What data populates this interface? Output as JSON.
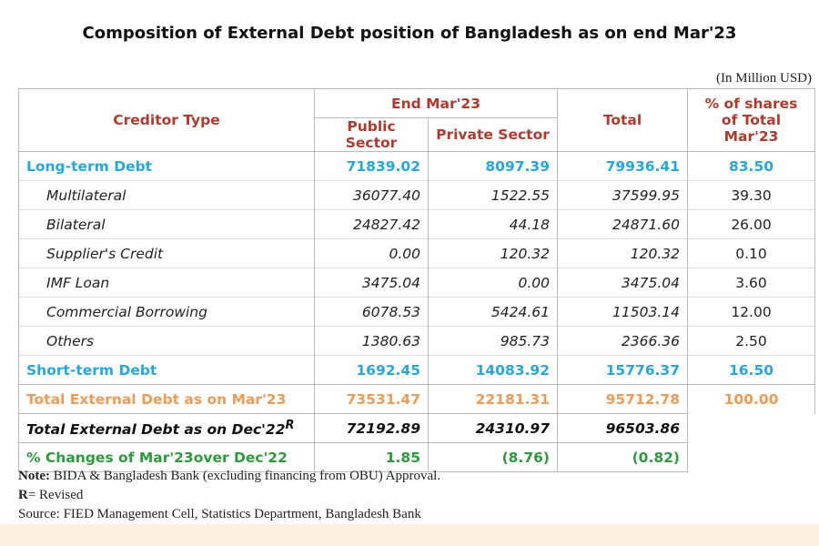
{
  "title": "Composition of External Debt position of Bangladesh as on end Mar'23",
  "unit": "(In Million USD)",
  "header": {
    "creditor_type": "Creditor Type",
    "period": "End Mar'23",
    "public": "Public Sector",
    "private": "Private Sector",
    "total": "Total",
    "share": "% of shares of Total Mar'23"
  },
  "rows": [
    {
      "style": "blue",
      "label": "Long-term Debt",
      "public": "71839.02",
      "private": "8097.39",
      "total": "79936.41",
      "share": "83.50"
    },
    {
      "style": "sub",
      "label": "Multilateral",
      "public": "36077.40",
      "private": "1522.55",
      "total": "37599.95",
      "share": "39.30"
    },
    {
      "style": "sub",
      "label": "Bilateral",
      "public": "24827.42",
      "private": "44.18",
      "total": "24871.60",
      "share": "26.00"
    },
    {
      "style": "sub",
      "label": "Supplier's Credit",
      "public": "0.00",
      "private": "120.32",
      "total": "120.32",
      "share": "0.10"
    },
    {
      "style": "sub",
      "label": "IMF Loan",
      "public": "3475.04",
      "private": "0.00",
      "total": "3475.04",
      "share": "3.60"
    },
    {
      "style": "sub",
      "label": "Commercial Borrowing",
      "public": "6078.53",
      "private": "5424.61",
      "total": "11503.14",
      "share": "12.00"
    },
    {
      "style": "sub",
      "label": "Others",
      "public": "1380.63",
      "private": "985.73",
      "total": "2366.36",
      "share": "2.50"
    },
    {
      "style": "blue",
      "label": "Short-term Debt",
      "public": "1692.45",
      "private": "14083.92",
      "total": "15776.37",
      "share": "16.50"
    },
    {
      "style": "orange",
      "label": "Total  External Debt as on Mar'23",
      "public": "73531.47",
      "private": "22181.31",
      "total": "95712.78",
      "share": "100.00"
    },
    {
      "style": "black",
      "label": "Total  External Debt as on Dec'22",
      "label_sup": "R",
      "public": "72192.89",
      "private": "24310.97",
      "total": "96503.86"
    },
    {
      "style": "green",
      "label": "% Changes of Mar'23over Dec'22",
      "public": "1.85",
      "private": "(8.76)",
      "total": "(0.82)"
    }
  ],
  "notes": {
    "note_label": "Note:",
    "note_text": " BIDA & Bangladesh Bank (excluding financing from OBU) Approval.",
    "r_label": "R",
    "r_text": "= Revised",
    "source": "Source: FIED Management Cell, Statistics Department, Bangladesh Bank"
  }
}
